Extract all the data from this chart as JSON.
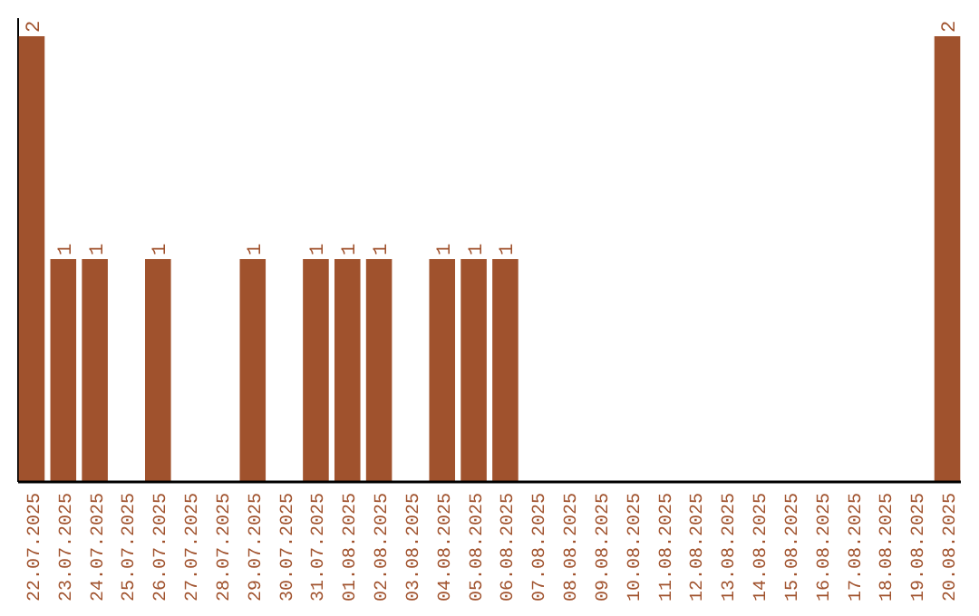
{
  "chart_data": {
    "type": "bar",
    "categories": [
      "22.07.2025",
      "23.07.2025",
      "24.07.2025",
      "25.07.2025",
      "26.07.2025",
      "27.07.2025",
      "28.07.2025",
      "29.07.2025",
      "30.07.2025",
      "31.07.2025",
      "01.08.2025",
      "02.08.2025",
      "03.08.2025",
      "04.08.2025",
      "05.08.2025",
      "06.08.2025",
      "07.08.2025",
      "08.08.2025",
      "09.08.2025",
      "10.08.2025",
      "11.08.2025",
      "12.08.2025",
      "13.08.2025",
      "14.08.2025",
      "15.08.2025",
      "16.08.2025",
      "17.08.2025",
      "18.08.2025",
      "19.08.2025",
      "20.08.2025"
    ],
    "values": [
      2,
      1,
      1,
      0,
      1,
      0,
      0,
      1,
      0,
      1,
      1,
      1,
      0,
      1,
      1,
      1,
      0,
      0,
      0,
      0,
      0,
      0,
      0,
      0,
      0,
      0,
      0,
      0,
      0,
      2
    ],
    "value_labels": [
      "2",
      "1",
      "1",
      null,
      "1",
      null,
      null,
      "1",
      null,
      "1",
      "1",
      "1",
      null,
      "1",
      "1",
      "1",
      null,
      null,
      null,
      null,
      null,
      null,
      null,
      null,
      null,
      null,
      null,
      null,
      null,
      "2"
    ],
    "color": "#a0522d"
  }
}
